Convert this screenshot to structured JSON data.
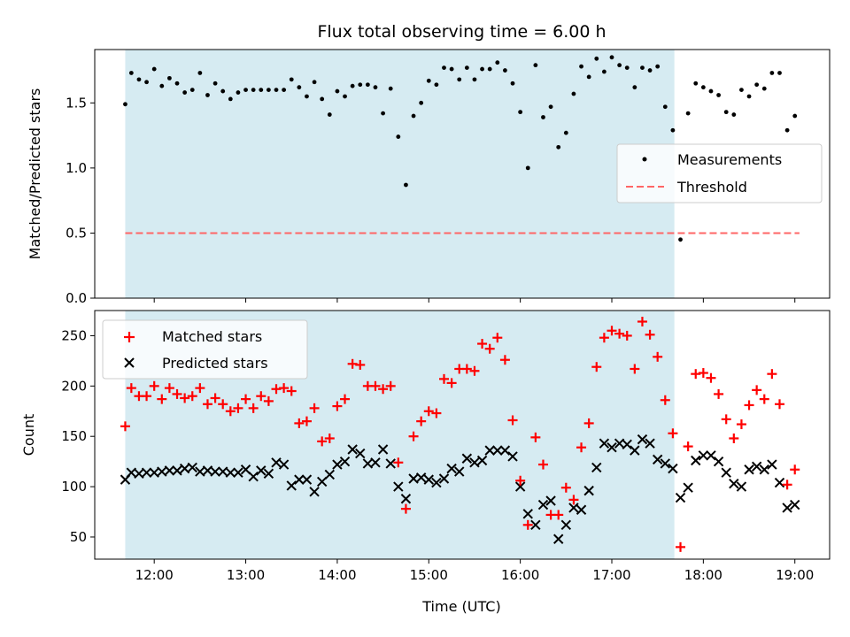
{
  "chart_data": [
    {
      "type": "scatter",
      "title": "Flux total observing time = 6.00 h",
      "xlabel": "",
      "ylabel": "Matched/Predicted stars",
      "xlim": [
        11.35,
        19.38
      ],
      "ylim": [
        0.0,
        1.91
      ],
      "yticks": [
        0.0,
        0.5,
        1.0,
        1.5
      ],
      "ytick_labels": [
        "0.0",
        "0.5",
        "1.0",
        "1.5"
      ],
      "grid": false,
      "legend_position": "center-right",
      "shaded_interval": {
        "start": "11:41",
        "end": "17:41",
        "color": "#add8e6"
      },
      "threshold": {
        "name": "Threshold",
        "value": 0.5,
        "x_start": "11:41",
        "x_end": "19:03",
        "color": "#ff6666"
      },
      "series": [
        {
          "name": "Measurements",
          "color": "#000000",
          "marker": "dot",
          "x": [
            "11:41",
            "11:45",
            "11:50",
            "11:55",
            "12:00",
            "12:05",
            "12:10",
            "12:15",
            "12:20",
            "12:25",
            "12:30",
            "12:35",
            "12:40",
            "12:45",
            "12:50",
            "12:55",
            "13:00",
            "13:05",
            "13:10",
            "13:15",
            "13:20",
            "13:25",
            "13:30",
            "13:35",
            "13:40",
            "13:45",
            "13:50",
            "13:55",
            "14:00",
            "14:05",
            "14:10",
            "14:15",
            "14:20",
            "14:25",
            "14:30",
            "14:35",
            "14:40",
            "14:45",
            "14:50",
            "14:55",
            "15:00",
            "15:05",
            "15:10",
            "15:15",
            "15:20",
            "15:25",
            "15:30",
            "15:35",
            "15:40",
            "15:45",
            "15:50",
            "15:55",
            "16:00",
            "16:05",
            "16:10",
            "16:15",
            "16:20",
            "16:25",
            "16:30",
            "16:35",
            "16:40",
            "16:45",
            "16:50",
            "16:55",
            "17:00",
            "17:05",
            "17:10",
            "17:15",
            "17:20",
            "17:25",
            "17:30",
            "17:35",
            "17:40",
            "17:45",
            "17:50",
            "17:55",
            "18:00",
            "18:05",
            "18:10",
            "18:15",
            "18:20",
            "18:25",
            "18:30",
            "18:35",
            "18:40",
            "18:45",
            "18:50",
            "18:55",
            "19:00"
          ],
          "y": [
            1.49,
            1.73,
            1.68,
            1.66,
            1.76,
            1.63,
            1.69,
            1.65,
            1.58,
            1.6,
            1.73,
            1.56,
            1.65,
            1.59,
            1.53,
            1.58,
            1.6,
            1.6,
            1.6,
            1.6,
            1.6,
            1.6,
            1.68,
            1.62,
            1.55,
            1.66,
            1.53,
            1.41,
            1.59,
            1.55,
            1.63,
            1.64,
            1.64,
            1.62,
            1.42,
            1.61,
            1.24,
            0.87,
            1.4,
            1.5,
            1.67,
            1.64,
            1.77,
            1.76,
            1.68,
            1.77,
            1.68,
            1.76,
            1.76,
            1.81,
            1.75,
            1.65,
            1.43,
            1.0,
            1.79,
            1.39,
            1.47,
            1.16,
            1.27,
            1.57,
            1.78,
            1.7,
            1.84,
            1.74,
            1.85,
            1.79,
            1.77,
            1.62,
            1.77,
            1.75,
            1.78,
            1.47,
            1.29,
            0.45,
            1.42,
            1.65,
            1.62,
            1.59,
            1.56,
            1.43,
            1.41,
            1.6,
            1.55,
            1.64,
            1.61,
            1.73,
            1.73,
            1.29,
            1.4
          ]
        }
      ]
    },
    {
      "type": "scatter",
      "title": "",
      "xlabel": "Time (UTC)",
      "ylabel": "Count",
      "xlim": [
        11.35,
        19.38
      ],
      "ylim": [
        28,
        275
      ],
      "xticks": [
        12,
        13,
        14,
        15,
        16,
        17,
        18,
        19
      ],
      "xtick_labels": [
        "12:00",
        "13:00",
        "14:00",
        "15:00",
        "16:00",
        "17:00",
        "18:00",
        "19:00"
      ],
      "yticks": [
        50,
        100,
        150,
        200,
        250
      ],
      "ytick_labels": [
        "50",
        "100",
        "150",
        "200",
        "250"
      ],
      "grid": false,
      "legend_position": "top-left",
      "shaded_interval": {
        "start": "11:41",
        "end": "17:41",
        "color": "#add8e6"
      },
      "series": [
        {
          "name": "Matched stars",
          "color": "#ff0000",
          "marker": "plus",
          "x": [
            "11:41",
            "11:45",
            "11:50",
            "11:55",
            "12:00",
            "12:05",
            "12:10",
            "12:15",
            "12:20",
            "12:25",
            "12:30",
            "12:35",
            "12:40",
            "12:45",
            "12:50",
            "12:55",
            "13:00",
            "13:05",
            "13:10",
            "13:15",
            "13:20",
            "13:25",
            "13:30",
            "13:35",
            "13:40",
            "13:45",
            "13:50",
            "13:55",
            "14:00",
            "14:05",
            "14:10",
            "14:15",
            "14:20",
            "14:25",
            "14:30",
            "14:35",
            "14:40",
            "14:45",
            "14:50",
            "14:55",
            "15:00",
            "15:05",
            "15:10",
            "15:15",
            "15:20",
            "15:25",
            "15:30",
            "15:35",
            "15:40",
            "15:45",
            "15:50",
            "15:55",
            "16:00",
            "16:05",
            "16:10",
            "16:15",
            "16:20",
            "16:25",
            "16:30",
            "16:35",
            "16:40",
            "16:45",
            "16:50",
            "16:55",
            "17:00",
            "17:05",
            "17:10",
            "17:15",
            "17:20",
            "17:25",
            "17:30",
            "17:35",
            "17:40",
            "17:45",
            "17:50",
            "17:55",
            "18:00",
            "18:05",
            "18:10",
            "18:15",
            "18:20",
            "18:25",
            "18:30",
            "18:35",
            "18:40",
            "18:45",
            "18:50",
            "18:55",
            "19:00"
          ],
          "y": [
            160,
            198,
            190,
            190,
            200,
            187,
            198,
            192,
            188,
            190,
            198,
            182,
            188,
            182,
            175,
            178,
            187,
            178,
            190,
            185,
            197,
            198,
            195,
            163,
            165,
            178,
            145,
            148,
            180,
            187,
            222,
            221,
            200,
            200,
            197,
            200,
            124,
            78,
            150,
            165,
            175,
            173,
            207,
            203,
            217,
            217,
            215,
            242,
            237,
            248,
            226,
            166,
            106,
            62,
            149,
            122,
            72,
            72,
            99,
            87,
            139,
            163,
            219,
            248,
            255,
            252,
            250,
            217,
            264,
            251,
            229,
            186,
            153,
            40,
            140,
            212,
            213,
            208,
            192,
            167,
            148,
            162,
            181,
            196,
            187,
            212,
            182,
            102,
            117
          ]
        },
        {
          "name": "Predicted stars",
          "color": "#000000",
          "marker": "x",
          "x": [
            "11:41",
            "11:45",
            "11:50",
            "11:55",
            "12:00",
            "12:05",
            "12:10",
            "12:15",
            "12:20",
            "12:25",
            "12:30",
            "12:35",
            "12:40",
            "12:45",
            "12:50",
            "12:55",
            "13:00",
            "13:05",
            "13:10",
            "13:15",
            "13:20",
            "13:25",
            "13:30",
            "13:35",
            "13:40",
            "13:45",
            "13:50",
            "13:55",
            "14:00",
            "14:05",
            "14:10",
            "14:15",
            "14:20",
            "14:25",
            "14:30",
            "14:35",
            "14:40",
            "14:45",
            "14:50",
            "14:55",
            "15:00",
            "15:05",
            "15:10",
            "15:15",
            "15:20",
            "15:25",
            "15:30",
            "15:35",
            "15:40",
            "15:45",
            "15:50",
            "15:55",
            "16:00",
            "16:05",
            "16:10",
            "16:15",
            "16:20",
            "16:25",
            "16:30",
            "16:35",
            "16:40",
            "16:45",
            "16:50",
            "16:55",
            "17:00",
            "17:05",
            "17:10",
            "17:15",
            "17:20",
            "17:25",
            "17:30",
            "17:35",
            "17:40",
            "17:45",
            "17:50",
            "17:55",
            "18:00",
            "18:05",
            "18:10",
            "18:15",
            "18:20",
            "18:25",
            "18:30",
            "18:35",
            "18:40",
            "18:45",
            "18:50",
            "18:55",
            "19:00"
          ],
          "y": [
            107,
            114,
            113,
            114,
            114,
            115,
            116,
            116,
            118,
            119,
            115,
            116,
            115,
            115,
            114,
            114,
            117,
            110,
            116,
            113,
            124,
            122,
            101,
            107,
            107,
            95,
            105,
            112,
            122,
            125,
            137,
            133,
            123,
            124,
            137,
            123,
            100,
            88,
            108,
            109,
            107,
            104,
            108,
            118,
            115,
            128,
            124,
            126,
            136,
            136,
            136,
            130,
            100,
            73,
            62,
            82,
            86,
            48,
            62,
            79,
            77,
            96,
            119,
            143,
            139,
            143,
            142,
            136,
            147,
            143,
            127,
            123,
            118,
            89,
            99,
            126,
            131,
            131,
            125,
            114,
            103,
            100,
            117,
            120,
            117,
            122,
            104,
            79,
            82
          ]
        }
      ]
    }
  ]
}
